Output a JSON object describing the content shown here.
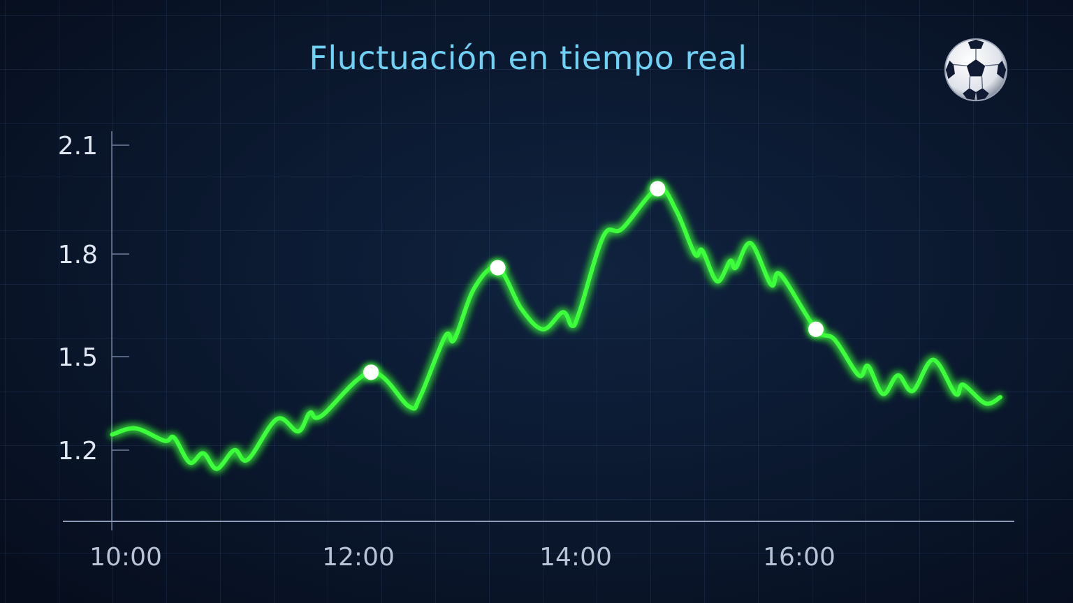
{
  "chart_data": {
    "type": "line",
    "title": "Fluctuación en tiempo real",
    "xlabel": "",
    "ylabel": "",
    "y_ticks": [
      "2.1",
      "1.8",
      "1.5",
      "1.2"
    ],
    "x_ticks": [
      "10:00",
      "12:00",
      "14:00",
      "16:00"
    ],
    "grid": true,
    "line_color": "#3dff3a",
    "marker_color": "#ffffff",
    "series": [
      {
        "x": [
          "09:53",
          "10:05",
          "10:20",
          "10:25",
          "10:33",
          "10:40",
          "10:47",
          "10:56",
          "11:03",
          "11:18",
          "11:29",
          "11:35",
          "11:41",
          "12:07",
          "12:28",
          "12:34",
          "12:48",
          "12:53",
          "13:04",
          "13:17",
          "13:30",
          "13:42",
          "13:53",
          "13:58",
          "14:02",
          "14:15",
          "14:25",
          "14:44",
          "14:54",
          "15:04",
          "15:08",
          "15:16",
          "15:23",
          "15:26",
          "15:34",
          "15:45",
          "15:50",
          "16:09",
          "16:19",
          "16:32",
          "16:37",
          "16:45",
          "16:53",
          "17:01",
          "17:12",
          "17:24",
          "17:28",
          "17:40",
          "17:48"
        ],
        "y": [
          1.25,
          1.27,
          1.23,
          1.24,
          1.16,
          1.19,
          1.14,
          1.2,
          1.17,
          1.3,
          1.26,
          1.32,
          1.31,
          1.45,
          1.34,
          1.37,
          1.56,
          1.55,
          1.7,
          1.76,
          1.64,
          1.58,
          1.63,
          1.59,
          1.63,
          1.85,
          1.87,
          1.98,
          1.92,
          1.8,
          1.81,
          1.72,
          1.78,
          1.76,
          1.83,
          1.71,
          1.74,
          1.58,
          1.55,
          1.44,
          1.47,
          1.38,
          1.44,
          1.39,
          1.49,
          1.38,
          1.41,
          1.35,
          1.37
        ]
      }
    ],
    "highlighted_points": [
      {
        "x": "12:07",
        "y": 1.45
      },
      {
        "x": "13:17",
        "y": 1.76
      },
      {
        "x": "14:44",
        "y": 1.98
      },
      {
        "x": "16:09",
        "y": 1.58
      }
    ]
  },
  "icons": {
    "corner": "soccer-ball-icon"
  }
}
